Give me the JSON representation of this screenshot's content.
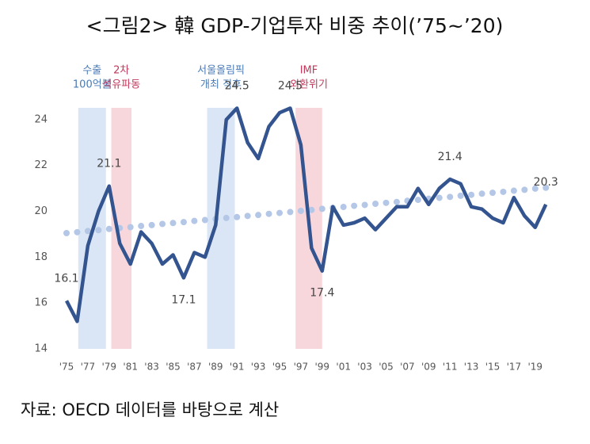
{
  "title": "<그림2> 韓 GDP-기업투자 비중 추이(’75~’20)",
  "source": "자료: OECD 데이터를 바탕으로 계산",
  "chart_data": {
    "type": "line",
    "categories": [
      "'75",
      null,
      "'77",
      null,
      "'79",
      null,
      "'81",
      null,
      "'83",
      null,
      "'85",
      null,
      "'87",
      null,
      "'89",
      null,
      "'91",
      null,
      "'93",
      null,
      "'95",
      null,
      "'97",
      null,
      "'99",
      null,
      "'01",
      null,
      "'03",
      null,
      "'05",
      null,
      "'07",
      null,
      "'09",
      null,
      "'11",
      null,
      "'13",
      null,
      "'15",
      null,
      "'17",
      null,
      "'19",
      null
    ],
    "series": [
      {
        "color": "#33548f",
        "values": [
          16.1,
          15.2,
          18.5,
          20.0,
          21.1,
          18.6,
          17.7,
          19.1,
          18.6,
          17.7,
          18.1,
          17.1,
          18.2,
          18.0,
          19.4,
          24.0,
          24.5,
          23.0,
          22.3,
          23.7,
          24.3,
          24.5,
          22.9,
          18.4,
          17.4,
          20.2,
          19.4,
          19.5,
          19.7,
          19.2,
          19.7,
          20.2,
          20.2,
          21.0,
          20.3,
          21.0,
          21.4,
          21.2,
          20.2,
          20.1,
          19.7,
          19.5,
          20.6,
          19.8,
          19.3,
          20.3
        ],
        "labeled": [
          0,
          4,
          11,
          16,
          21,
          24,
          36,
          45
        ]
      },
      {
        "color": "#b4c7e7",
        "style": "dotted",
        "values": [
          19.05,
          19.09,
          19.14,
          19.18,
          19.23,
          19.27,
          19.31,
          19.36,
          19.4,
          19.45,
          19.49,
          19.53,
          19.58,
          19.62,
          19.67,
          19.71,
          19.75,
          19.8,
          19.84,
          19.89,
          19.93,
          19.97,
          20.02,
          20.06,
          20.11,
          20.15,
          20.19,
          20.24,
          20.28,
          20.33,
          20.37,
          20.41,
          20.46,
          20.5,
          20.55,
          20.59,
          20.63,
          20.68,
          20.72,
          20.77,
          20.81,
          20.85,
          20.9,
          20.94,
          20.99,
          21.03
        ]
      }
    ],
    "highlights": [
      {
        "lines": [
          "수출",
          "100억불"
        ],
        "color": "#dae6f5",
        "text_color": "#4a7ab5",
        "start": 1.1,
        "end": 3.7
      },
      {
        "lines": [
          "2차",
          "석유파동"
        ],
        "color": "#f8d7dc",
        "text_color": "#c0395b",
        "start": 4.2,
        "end": 6.1
      },
      {
        "lines": [
          "서울올림픽",
          "개최 직후"
        ],
        "color": "#dae6f5",
        "text_color": "#4a7ab5",
        "start": 13.2,
        "end": 15.8
      },
      {
        "lines": [
          "IMF",
          "외환위기"
        ],
        "color": "#f8d7dc",
        "text_color": "#c0395b",
        "start": 21.5,
        "end": 24.0
      }
    ],
    "ylim": [
      14,
      25
    ],
    "yticks": [
      14,
      16,
      18,
      20,
      22,
      24
    ],
    "grid": false
  }
}
